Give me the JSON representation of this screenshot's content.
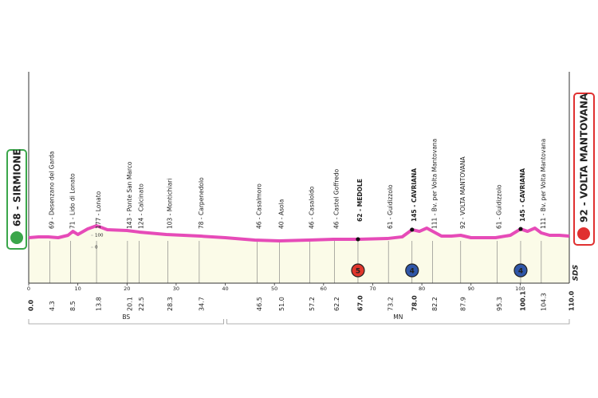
{
  "chart_data": {
    "type": "profile",
    "color": "#e64bb8",
    "fill": "#fbfbe8",
    "xlim": [
      0,
      110
    ],
    "xticks": [
      0,
      10,
      20,
      30,
      40,
      50,
      60,
      70,
      80,
      90,
      100
    ],
    "ylim": [
      -300,
      1500
    ],
    "yticks": [
      0,
      100
    ],
    "x": [
      0,
      2,
      4,
      6,
      8,
      9,
      10,
      12,
      13.8,
      16,
      20,
      22.5,
      28,
      35,
      40,
      46,
      51,
      57,
      62,
      67,
      73,
      76,
      78,
      79.5,
      81,
      82.2,
      84,
      86,
      87.9,
      90,
      95,
      98,
      100.1,
      101.5,
      103,
      104.3,
      106,
      108,
      110
    ],
    "values": [
      80,
      87,
      87,
      80,
      100,
      133,
      107,
      153,
      180,
      147,
      140,
      127,
      107,
      93,
      80,
      60,
      53,
      60,
      67,
      67,
      73,
      87,
      147,
      133,
      160,
      133,
      93,
      93,
      100,
      80,
      80,
      100,
      153,
      133,
      160,
      120,
      100,
      100,
      93
    ],
    "start": "68 - SIRMIONE",
    "finish": "92 - VOLTA MANTOVANA",
    "waypoints": [
      {
        "km": {
          "value": 0,
          "label": "0.0"
        },
        "bold": true
      },
      {
        "km": 4.3,
        "label": "69 - Desenzano del Garda"
      },
      {
        "km": 8.5,
        "label": "71 - Lido di Lonato"
      },
      {
        "km": 13.8,
        "label": "177 - Lonato"
      },
      {
        "km": 20.1,
        "label": "143 - Ponte San Marco"
      },
      {
        "km": 22.5,
        "label": "124 - Calcinato"
      },
      {
        "km": 28.3,
        "label": "103 - Montichiari"
      },
      {
        "km": 34.7,
        "label": "78 - Carpenedolo"
      },
      {
        "km": 46.5,
        "label": "46 - Casalmoro"
      },
      {
        "km": {
          "value": 51,
          "label": "51.0"
        },
        "label": "40 - Asola"
      },
      {
        "km": 57.2,
        "label": "46 - Casaloldo"
      },
      {
        "km": 62.2,
        "label": "46 - Castel Goffredo"
      },
      {
        "km": {
          "value": 67,
          "label": "67.0"
        },
        "label": "62 - MEDOLE",
        "bold": true
      },
      {
        "km": 73.2,
        "label": "61 - Guidizzolo"
      },
      {
        "km": {
          "value": 78,
          "label": "78.0"
        },
        "label": "145 - CAVRIANA",
        "bold": true
      },
      {
        "km": 82.2,
        "label": "111 - Bv. per Volta Mantovana"
      },
      {
        "km": 87.9,
        "label": "92 - VOLTA MANTOVANA"
      },
      {
        "km": 95.3,
        "label": "61 - Guidizzolo"
      },
      {
        "km": 100.1,
        "label": "145 - CAVRIANA",
        "bold": true
      },
      {
        "km": 104.3,
        "label": "111 - Bv. per Volta Mantovana"
      },
      {
        "km": {
          "value": 110,
          "label": "110.0"
        },
        "bold": true
      }
    ],
    "markers": [
      {
        "km": 67,
        "label": "5",
        "color": "#e0362c"
      },
      {
        "km": 78,
        "label": "4",
        "color": "#2f56a8"
      },
      {
        "km": 100.1,
        "label": "4",
        "color": "#2f56a8"
      }
    ],
    "regions": [
      {
        "label": "BS",
        "range": [
          0,
          40
        ]
      },
      {
        "label": "MN",
        "range": [
          40,
          110
        ]
      }
    ],
    "logo": "SDS"
  }
}
